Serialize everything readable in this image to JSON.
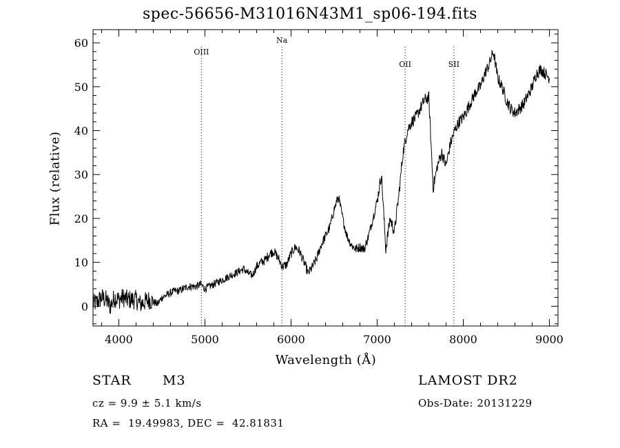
{
  "chart_data": {
    "type": "line",
    "title": "spec-56656-M31016N43M1_sp06-194.fits",
    "xlabel": "Wavelength (Å)",
    "ylabel": "Flux (relative)",
    "xlim": [
      3700,
      9100
    ],
    "ylim": [
      -4.5,
      63
    ],
    "xticks": [
      4000,
      5000,
      6000,
      7000,
      8000,
      9000
    ],
    "yticks": [
      0,
      10,
      20,
      30,
      40,
      50,
      60
    ],
    "grid": false,
    "line_color": "#000000",
    "series": [
      {
        "x": [
          3700,
          3750,
          3800,
          3850,
          3900,
          3950,
          4000,
          4050,
          4100,
          4150,
          4200,
          4250,
          4300,
          4350,
          4400,
          4450,
          4500,
          4550,
          4600,
          4650,
          4700,
          4750,
          4800,
          4850,
          4900,
          4950,
          5000,
          5050,
          5100,
          5150,
          5200,
          5250,
          5300,
          5350,
          5400,
          5450,
          5500,
          5550,
          5600,
          5650,
          5700,
          5750,
          5800,
          5850,
          5900,
          5950,
          6000,
          6050,
          6100,
          6150,
          6200,
          6250,
          6300,
          6350,
          6400,
          6450,
          6500,
          6550,
          6600,
          6650,
          6700,
          6750,
          6800,
          6850,
          6900,
          6950,
          7000,
          7050,
          7100,
          7150,
          7200,
          7250,
          7300,
          7350,
          7400,
          7450,
          7500,
          7550,
          7600,
          7650,
          7700,
          7750,
          7800,
          7850,
          7900,
          7950,
          8000,
          8050,
          8100,
          8150,
          8200,
          8250,
          8300,
          8350,
          8400,
          8450,
          8500,
          8550,
          8600,
          8650,
          8700,
          8750,
          8800,
          8850,
          8900,
          8950,
          9000
        ],
        "y": [
          0.5,
          1,
          2,
          1.5,
          0,
          2,
          1.5,
          2,
          1.5,
          1.5,
          1.5,
          0.5,
          1,
          1.5,
          1,
          0.5,
          2,
          2.5,
          3,
          3.5,
          3.5,
          4,
          4.5,
          4.5,
          4.5,
          5,
          4,
          4.5,
          5,
          5.5,
          6,
          6.5,
          7,
          7.5,
          8,
          8.5,
          7.5,
          7,
          9,
          10,
          10.5,
          12,
          12.5,
          11,
          9,
          9.5,
          12,
          13.5,
          12.5,
          10,
          7.5,
          9,
          11,
          14,
          16,
          18,
          22,
          25,
          20,
          16,
          14,
          13,
          13.5,
          13,
          16,
          20,
          24,
          30,
          13,
          20,
          17,
          25,
          35,
          40,
          42,
          43,
          45,
          47,
          47.5,
          27,
          32,
          35,
          32,
          37,
          40,
          42,
          43,
          45,
          47,
          49,
          50,
          53,
          55,
          58,
          52,
          50,
          47,
          45,
          44,
          45,
          46,
          48,
          50,
          53,
          54,
          53,
          52
        ]
      }
    ],
    "annotations": [
      {
        "label": "OIII",
        "x": 4959
      },
      {
        "label": "Na",
        "x": 5893
      },
      {
        "label": "OII",
        "x": 7325
      },
      {
        "label": "SII",
        "x": 7891
      }
    ]
  },
  "info": {
    "class_label": "STAR",
    "subclass": "M3",
    "velocity": "cz = 9.9 ± 5.1 km/s",
    "coords": "RA =  19.49983, DEC =  42.81831",
    "survey": "LAMOST DR2",
    "obs_date": "Obs-Date: 20131229"
  }
}
